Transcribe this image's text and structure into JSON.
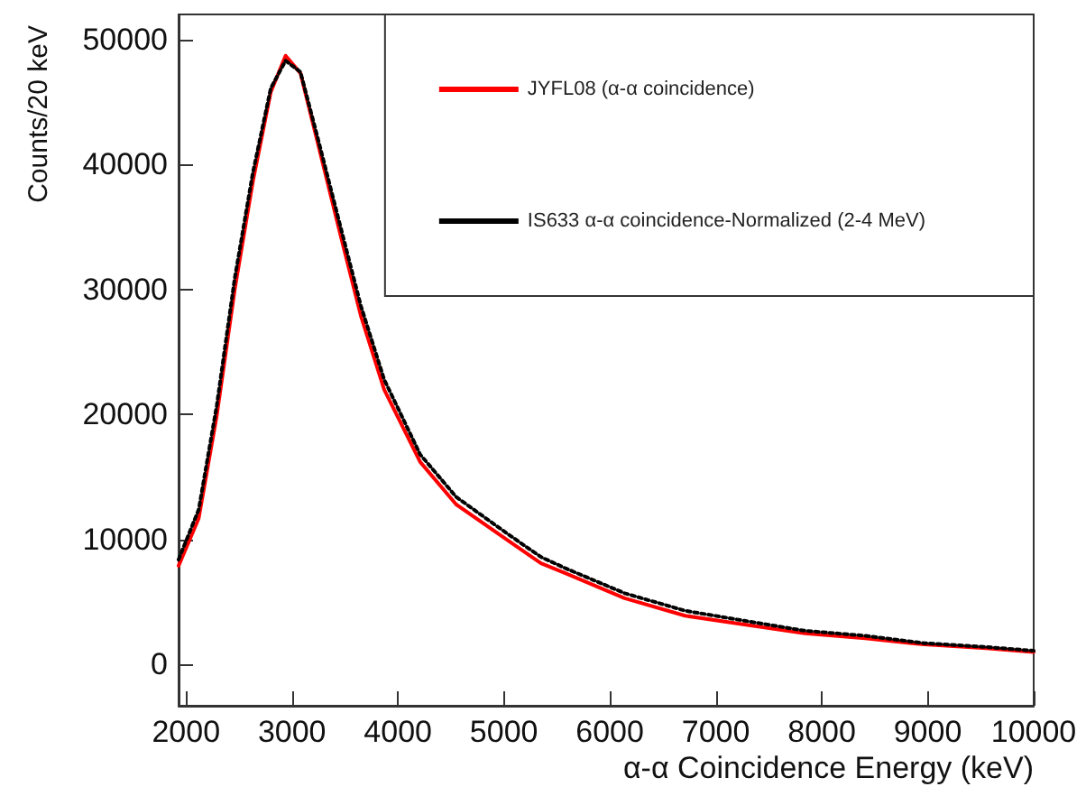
{
  "chart_data": {
    "type": "line",
    "xlabel": "α-α Coincidence Energy (keV)",
    "ylabel": "Counts/20 keV",
    "xlim": [
      1930,
      10000
    ],
    "ylim": [
      -3300,
      52000
    ],
    "xticks": [
      2000,
      3000,
      4000,
      5000,
      6000,
      7000,
      8000,
      9000,
      10000
    ],
    "yticks": [
      0,
      10000,
      20000,
      30000,
      40000,
      50000
    ],
    "grid": false,
    "legend": "top right",
    "marker": "none",
    "series": [
      {
        "name": "JYFL08 (α-α coincidence)",
        "color": "#ff0000",
        "line_style": "solid",
        "x": [
          1930,
          2120,
          2290,
          2460,
          2630,
          2800,
          2940,
          3080,
          3250,
          3480,
          3650,
          3870,
          4210,
          4550,
          5060,
          5350,
          5580,
          6140,
          6710,
          7270,
          7840,
          8410,
          8970,
          9550,
          10000
        ],
        "values": [
          7900,
          11700,
          19900,
          30000,
          38600,
          45800,
          48700,
          47300,
          41500,
          33600,
          27900,
          22000,
          16200,
          12800,
          9800,
          8100,
          7300,
          5300,
          3900,
          3200,
          2500,
          2100,
          1600,
          1300,
          1000
        ]
      },
      {
        "name": "IS633 α-α coincidence-Normalized (2-4 MeV)",
        "color": "#000000",
        "line_style": "dotted",
        "x": [
          1930,
          2120,
          2290,
          2460,
          2630,
          2800,
          2940,
          3080,
          3250,
          3480,
          3650,
          3870,
          4210,
          4550,
          5060,
          5350,
          5580,
          6140,
          6710,
          7270,
          7840,
          8410,
          8970,
          9550,
          10000
        ],
        "values": [
          8400,
          12400,
          20700,
          30900,
          39300,
          46100,
          48300,
          47400,
          41900,
          34300,
          28700,
          22800,
          16800,
          13400,
          10300,
          8600,
          7700,
          5700,
          4300,
          3500,
          2700,
          2300,
          1700,
          1400,
          1100
        ]
      }
    ]
  }
}
